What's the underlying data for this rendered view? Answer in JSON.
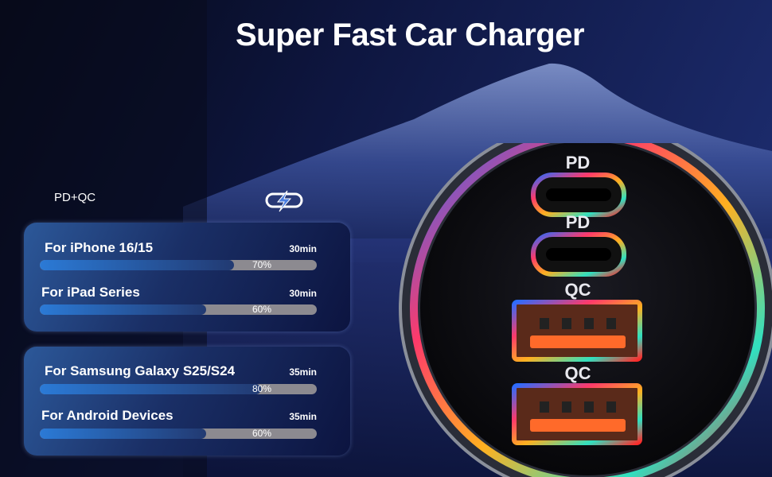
{
  "title": "Super Fast Car Charger",
  "tag": "PD+QC",
  "logo_icon": "lightning-plug-icon",
  "panels": [
    {
      "items": [
        {
          "label": "For iPhone 16/15",
          "time": "30min",
          "percent": 70,
          "percent_label": "70%"
        },
        {
          "label": "For iPad Series",
          "time": "30min",
          "percent": 60,
          "percent_label": "60%"
        }
      ]
    },
    {
      "items": [
        {
          "label": "For Samsung Galaxy S25/S24",
          "time": "35min",
          "percent": 80,
          "percent_label": "80%"
        },
        {
          "label": "For Android Devices",
          "time": "35min",
          "percent": 60,
          "percent_label": "60%"
        }
      ]
    }
  ],
  "ports": [
    "PD",
    "PD",
    "QC",
    "QC"
  ],
  "colors": {
    "bar_fill": "#2b7ad6",
    "bar_track": "#8c8a90",
    "port_orange": "#ff6a2a"
  }
}
